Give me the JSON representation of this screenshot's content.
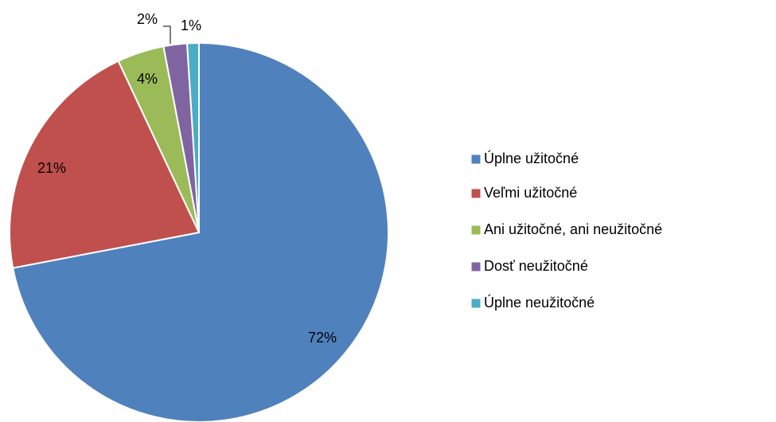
{
  "chart_data": {
    "type": "pie",
    "categories": [
      "Úplne užitočné",
      "Veľmi užitočné",
      "Ani užitočné, ani neužitočné",
      "Dosť neužitočné",
      "Úplne neužitočné"
    ],
    "values": [
      72,
      21,
      4,
      2,
      1
    ],
    "value_labels": [
      "72%",
      "21%",
      "4%",
      "2%",
      "1%"
    ],
    "colors": [
      "#4f81bd",
      "#c0504d",
      "#9bbb59",
      "#8064a2",
      "#4bacc6"
    ],
    "legend": "right"
  }
}
